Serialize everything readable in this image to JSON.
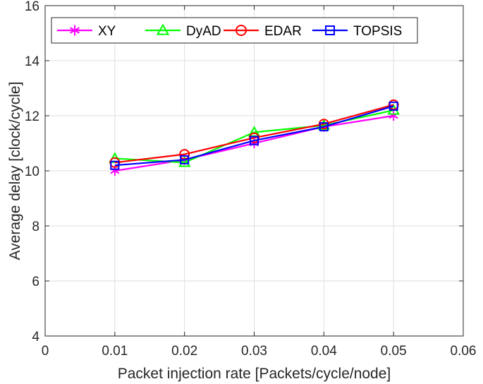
{
  "chart_data": {
    "type": "line",
    "title": "",
    "xlabel": "Packet injection rate [Packets/cycle/node]",
    "ylabel": "Average delay [clock/cycle]",
    "xlim": [
      0,
      0.06
    ],
    "ylim": [
      4,
      16
    ],
    "xticks": [
      0,
      0.01,
      0.02,
      0.03,
      0.04,
      0.05,
      0.06
    ],
    "xtick_labels": [
      "0",
      "0.01",
      "0.02",
      "0.03",
      "0.04",
      "0.05",
      "0.06"
    ],
    "yticks": [
      4,
      6,
      8,
      10,
      12,
      14,
      16
    ],
    "ytick_labels": [
      "4",
      "6",
      "8",
      "10",
      "12",
      "14",
      "16"
    ],
    "grid": true,
    "legend_position": "top",
    "x": [
      0.01,
      0.02,
      0.03,
      0.04,
      0.05
    ],
    "series": [
      {
        "name": "XY",
        "values": [
          10.0,
          10.4,
          11.0,
          11.6,
          12.0
        ],
        "color": "#ff00ff",
        "marker": "asterisk"
      },
      {
        "name": "DyAD",
        "values": [
          10.45,
          10.3,
          11.4,
          11.65,
          12.2
        ],
        "color": "#00ff00",
        "marker": "triangle"
      },
      {
        "name": "EDAR",
        "values": [
          10.3,
          10.6,
          11.2,
          11.7,
          12.4
        ],
        "color": "#ff0000",
        "marker": "circle"
      },
      {
        "name": "TOPSIS",
        "values": [
          10.2,
          10.4,
          11.1,
          11.6,
          12.35
        ],
        "color": "#0000ff",
        "marker": "square"
      }
    ]
  }
}
